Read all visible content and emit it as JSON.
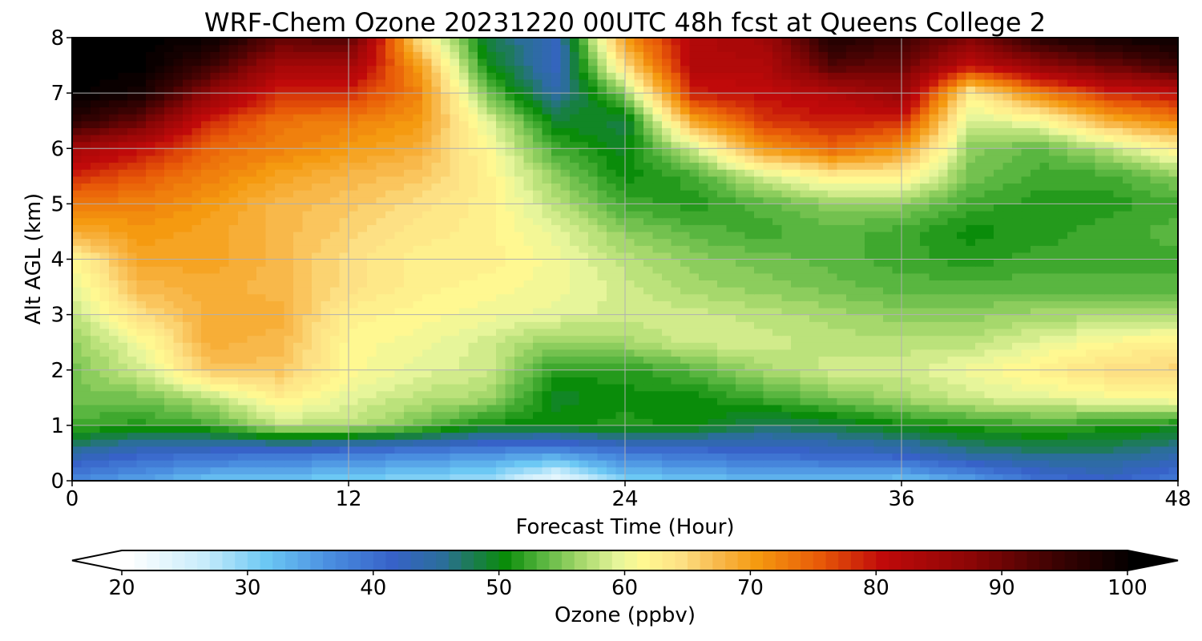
{
  "chart_data": {
    "type": "heatmap",
    "title": "WRF-Chem Ozone  20231220 00UTC 48h fcst at Queens College 2",
    "xlabel": "Forecast Time (Hour)",
    "ylabel": "Alt AGL (km)",
    "xlim": [
      0,
      48
    ],
    "ylim": [
      0,
      8
    ],
    "x_ticks": [
      "0",
      "12",
      "24",
      "36",
      "48"
    ],
    "y_ticks": [
      "0",
      "1",
      "2",
      "3",
      "4",
      "5",
      "6",
      "7",
      "8"
    ],
    "grid": true,
    "colorbar": {
      "label": "Ozone  (ppbv)",
      "min": 20,
      "max": 100,
      "step": 1,
      "extend": "both",
      "ticks": [
        "20",
        "30",
        "40",
        "50",
        "60",
        "70",
        "80",
        "90",
        "100"
      ],
      "colors": [
        {
          "v": 20,
          "c": "#ffffff"
        },
        {
          "v": 26,
          "c": "#c8ecfb"
        },
        {
          "v": 31,
          "c": "#6cc8f4"
        },
        {
          "v": 36,
          "c": "#4a8ee0"
        },
        {
          "v": 41,
          "c": "#3762c8"
        },
        {
          "v": 45,
          "c": "#2b6e9a"
        },
        {
          "v": 47,
          "c": "#1e7a5c"
        },
        {
          "v": 50,
          "c": "#0a8c0a"
        },
        {
          "v": 53,
          "c": "#59b640"
        },
        {
          "v": 56,
          "c": "#a6d86c"
        },
        {
          "v": 59,
          "c": "#e6f59a"
        },
        {
          "v": 61,
          "c": "#fff891"
        },
        {
          "v": 64,
          "c": "#fde084"
        },
        {
          "v": 67,
          "c": "#f8b84a"
        },
        {
          "v": 70,
          "c": "#f59a10"
        },
        {
          "v": 75,
          "c": "#e85a08"
        },
        {
          "v": 80,
          "c": "#c00a0a"
        },
        {
          "v": 87,
          "c": "#8c0606"
        },
        {
          "v": 94,
          "c": "#3a0202"
        },
        {
          "v": 100,
          "c": "#000000"
        }
      ]
    },
    "grid_x": [
      0,
      3,
      6,
      9,
      12,
      15,
      18,
      21,
      24,
      27,
      30,
      33,
      36,
      39,
      42,
      45,
      48
    ],
    "grid_y": [
      0,
      0.5,
      1,
      1.5,
      2,
      2.5,
      3,
      3.5,
      4,
      4.5,
      5,
      5.5,
      6,
      6.5,
      7,
      7.5,
      8
    ],
    "z": [
      [
        36,
        34,
        31,
        31,
        30,
        29,
        28,
        21,
        30,
        31,
        32,
        32,
        31,
        34,
        39,
        41,
        38
      ],
      [
        44,
        41,
        40,
        39,
        38,
        37,
        36,
        35,
        38,
        39,
        40,
        41,
        42,
        45,
        46,
        46,
        44
      ],
      [
        52,
        51,
        52,
        57,
        57,
        54,
        50,
        50,
        51,
        50,
        47,
        48,
        50,
        51,
        52,
        51,
        50
      ],
      [
        54,
        54,
        57,
        62,
        59,
        57,
        56,
        49,
        50,
        50,
        52,
        54,
        56,
        58,
        59,
        60,
        61
      ],
      [
        54,
        58,
        66,
        66,
        61,
        59,
        58,
        51,
        51,
        53,
        56,
        58,
        58,
        60,
        62,
        64,
        65
      ],
      [
        55,
        60,
        68,
        67,
        61,
        60,
        58,
        55,
        56,
        58,
        58,
        57,
        57,
        57,
        59,
        61,
        62
      ],
      [
        57,
        64,
        68,
        68,
        62,
        61,
        60,
        59,
        58,
        58,
        57,
        56,
        55,
        55,
        56,
        56,
        56
      ],
      [
        59,
        67,
        68,
        67,
        64,
        62,
        61,
        60,
        58,
        56,
        55,
        54,
        53,
        53,
        53,
        53,
        53
      ],
      [
        61,
        69,
        69,
        67,
        64,
        62,
        62,
        60,
        57,
        55,
        54,
        53,
        52,
        51,
        52,
        52,
        52
      ],
      [
        68,
        70,
        69,
        67,
        65,
        63,
        62,
        59,
        55,
        53,
        52,
        53,
        52,
        50,
        51,
        52,
        53
      ],
      [
        72,
        72,
        70,
        67,
        66,
        64,
        62,
        57,
        52,
        51,
        53,
        55,
        55,
        52,
        51,
        51,
        52
      ],
      [
        78,
        75,
        72,
        69,
        67,
        66,
        62,
        55,
        50,
        52,
        58,
        62,
        62,
        54,
        52,
        52,
        55
      ],
      [
        84,
        80,
        74,
        72,
        70,
        68,
        61,
        52,
        49,
        58,
        70,
        74,
        70,
        55,
        53,
        57,
        62
      ],
      [
        96,
        90,
        78,
        73,
        72,
        70,
        59,
        49,
        48,
        69,
        77,
        79,
        78,
        58,
        60,
        68,
        72
      ],
      [
        100,
        98,
        86,
        78,
        78,
        72,
        54,
        44,
        55,
        79,
        80,
        82,
        86,
        62,
        72,
        78,
        80
      ],
      [
        100,
        100,
        94,
        84,
        84,
        70,
        50,
        42,
        64,
        82,
        82,
        92,
        90,
        80,
        86,
        90,
        94
      ],
      [
        100,
        100,
        99,
        91,
        92,
        64,
        48,
        42,
        70,
        82,
        84,
        97,
        94,
        88,
        96,
        98,
        99
      ]
    ]
  }
}
